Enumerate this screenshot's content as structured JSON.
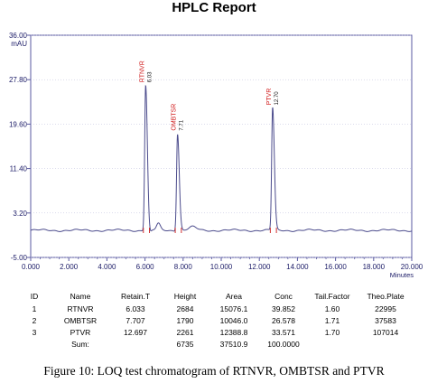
{
  "report_title": "HPLC Report",
  "caption": "Figure 10: LOQ test chromatogram of RTNVR, OMBTSR and PTVR",
  "colors": {
    "trace": "#4b4b8c",
    "axis": "#5a5aa0",
    "grid": "#b8b8d8",
    "peak_label": "#d01818",
    "peak_marker": "#d03030",
    "tick_text": "#1a1a66"
  },
  "chart_data": {
    "type": "line",
    "title": "HPLC Report",
    "xlabel": "Minutes",
    "ylabel": "mAU",
    "xlim": [
      0,
      20
    ],
    "ylim": [
      -5,
      36
    ],
    "grid": false,
    "x_ticks": [
      "0.000",
      "2.000",
      "4.000",
      "6.000",
      "8.000",
      "10.000",
      "12.000",
      "14.000",
      "16.000",
      "18.000",
      "20.000"
    ],
    "y_ticks": [
      "36.00",
      "27.80",
      "19.60",
      "11.40",
      "3.20",
      "-5.00"
    ],
    "baseline": 0,
    "peaks": [
      {
        "name": "RTNVR",
        "retention": "6.03",
        "rt": 6.033,
        "height": 26.8
      },
      {
        "name": "OMBTSR",
        "retention": "7.71",
        "rt": 7.707,
        "height": 17.9
      },
      {
        "name": "PTVR",
        "retention": "12.70",
        "rt": 12.697,
        "height": 22.6
      }
    ]
  },
  "table": {
    "headers": [
      "ID",
      "Name",
      "Retain.T",
      "Height",
      "Area",
      "Conc",
      "Tail.Factor",
      "Theo.Plate"
    ],
    "rows": [
      [
        "1",
        "RTNVR",
        "6.033",
        "2684",
        "15076.1",
        "39.852",
        "1.60",
        "22995"
      ],
      [
        "2",
        "OMBTSR",
        "7.707",
        "1790",
        "10046.0",
        "26.578",
        "1.71",
        "37583"
      ],
      [
        "3",
        "PTVR",
        "12.697",
        "2261",
        "12388.8",
        "33.571",
        "1.70",
        "107014"
      ]
    ],
    "sum_row": [
      "",
      "Sum:",
      "",
      "6735",
      "37510.9",
      "100.0000",
      "",
      ""
    ]
  }
}
